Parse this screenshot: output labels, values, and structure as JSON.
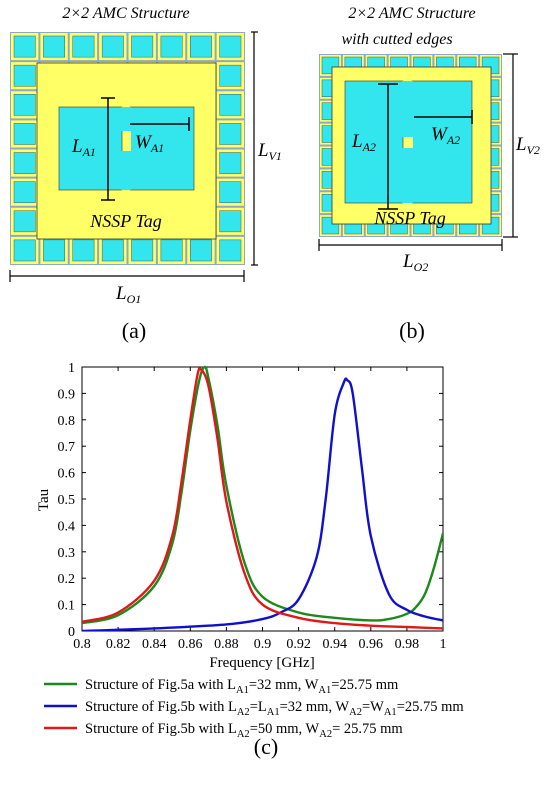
{
  "panel_a": {
    "title": "2×2 AMC Structure",
    "tag_label": "NSSP Tag",
    "length_label": "L",
    "length_sub": "A1",
    "width_label": "W",
    "width_sub": "A1",
    "vertical_label": "L",
    "vertical_sub": "V1",
    "horizontal_label": "L",
    "horizontal_sub": "O1",
    "caption": "(a)"
  },
  "panel_b": {
    "title": "2×2 AMC Structure",
    "subtitle": "with cutted edges",
    "tag_label": "NSSP Tag",
    "length_label": "L",
    "length_sub": "A2",
    "width_label": "W",
    "width_sub": "A2",
    "vertical_label": "L",
    "vertical_sub": "V2",
    "horizontal_label": "L",
    "horizontal_sub": "O2",
    "caption": "(b)"
  },
  "panel_c": {
    "caption": "(c)"
  },
  "colors": {
    "yellow": "#FFFF66",
    "cyan": "#33E6EE",
    "gap": "#8EA8C8",
    "green": "#1A8A1A",
    "blue": "#1010CC",
    "red": "#E01818"
  },
  "chart_data": {
    "type": "line",
    "xlabel": "Frequency [GHz]",
    "ylabel": "Tau",
    "xlim": [
      0.8,
      1.0
    ],
    "ylim": [
      0,
      1.0
    ],
    "xticks": [
      "0.8",
      "0.82",
      "0.84",
      "0.86",
      "0.88",
      "0.9",
      "0.92",
      "0.94",
      "0.96",
      "0.98",
      "1"
    ],
    "yticks": [
      "0",
      "0.1",
      "0.2",
      "0.3",
      "0.4",
      "0.5",
      "0.6",
      "0.7",
      "0.8",
      "0.9",
      "1"
    ],
    "legend_position": "below",
    "series": [
      {
        "id": "green",
        "color": "#1A8A1A",
        "legend": [
          {
            "t": "Structure of Fig.5a with L"
          },
          {
            "t": "A1",
            "sub": true
          },
          {
            "t": "=32 mm, W"
          },
          {
            "t": "A1",
            "sub": true
          },
          {
            "t": "=25.75 mm"
          }
        ],
        "x": [
          0.8,
          0.82,
          0.84,
          0.85,
          0.855,
          0.86,
          0.865,
          0.868,
          0.87,
          0.875,
          0.88,
          0.89,
          0.9,
          0.92,
          0.94,
          0.96,
          0.97,
          0.98,
          0.985,
          0.99,
          0.995,
          1.0
        ],
        "y": [
          0.03,
          0.06,
          0.17,
          0.33,
          0.52,
          0.76,
          0.95,
          1.0,
          0.96,
          0.78,
          0.55,
          0.26,
          0.13,
          0.07,
          0.05,
          0.04,
          0.045,
          0.065,
          0.09,
          0.14,
          0.24,
          0.37
        ]
      },
      {
        "id": "blue",
        "color": "#1010CC",
        "legend": [
          {
            "t": "Structure of Fig.5b with L"
          },
          {
            "t": "A2",
            "sub": true
          },
          {
            "t": "=L"
          },
          {
            "t": "A1",
            "sub": true
          },
          {
            "t": "=32 mm, W"
          },
          {
            "t": "A2",
            "sub": true
          },
          {
            "t": "=W"
          },
          {
            "t": "A1",
            "sub": true
          },
          {
            "t": "=25.75 mm"
          }
        ],
        "x": [
          0.8,
          0.84,
          0.88,
          0.9,
          0.91,
          0.92,
          0.93,
          0.935,
          0.94,
          0.945,
          0.947,
          0.95,
          0.955,
          0.96,
          0.97,
          0.98,
          0.99,
          1.0
        ],
        "y": [
          0.0,
          0.01,
          0.025,
          0.045,
          0.07,
          0.12,
          0.28,
          0.5,
          0.82,
          0.94,
          0.95,
          0.9,
          0.62,
          0.36,
          0.14,
          0.08,
          0.055,
          0.04
        ]
      },
      {
        "id": "red",
        "color": "#E01818",
        "legend": [
          {
            "t": "Structure of Fig.5b with L"
          },
          {
            "t": "A2",
            "sub": true
          },
          {
            "t": "=50 mm, W"
          },
          {
            "t": "A2",
            "sub": true
          },
          {
            "t": "= 25.75 mm"
          }
        ],
        "x": [
          0.8,
          0.82,
          0.84,
          0.85,
          0.855,
          0.86,
          0.864,
          0.866,
          0.87,
          0.875,
          0.88,
          0.89,
          0.9,
          0.92,
          0.94,
          0.96,
          0.98,
          1.0
        ],
        "y": [
          0.035,
          0.07,
          0.19,
          0.36,
          0.56,
          0.8,
          0.97,
          0.99,
          0.93,
          0.73,
          0.49,
          0.22,
          0.1,
          0.05,
          0.03,
          0.02,
          0.015,
          0.01
        ]
      }
    ]
  }
}
